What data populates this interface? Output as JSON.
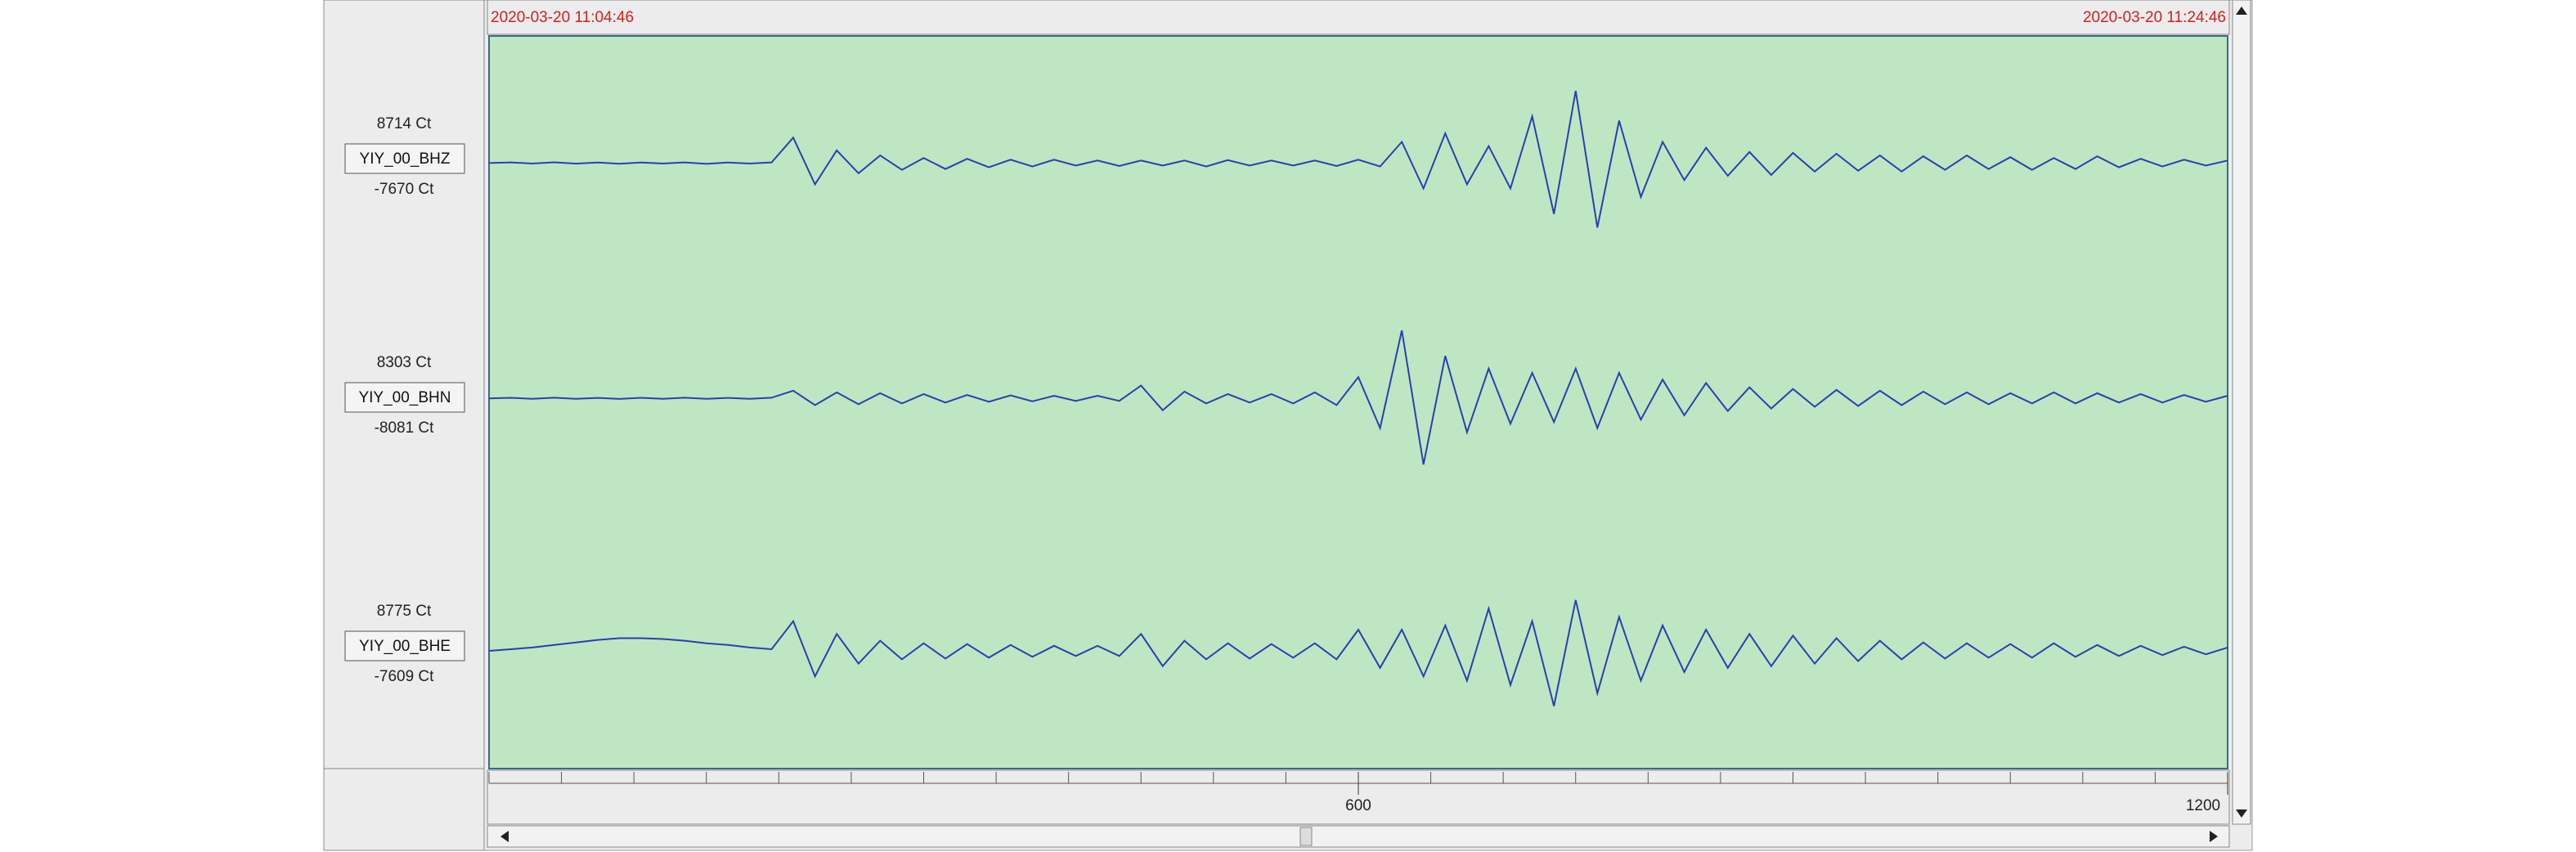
{
  "chart_data": {
    "type": "line",
    "start_time": "2020-03-20 11:04:46",
    "end_time": "2020-03-20 11:24:46",
    "background": "#bfe6c3",
    "xlim": [
      0,
      1200
    ],
    "xticks": [
      600,
      1200
    ],
    "xminorticks": [
      0,
      50,
      100,
      150,
      200,
      250,
      300,
      350,
      400,
      450,
      500,
      550,
      600,
      650,
      700,
      750,
      800,
      850,
      900,
      950,
      1000,
      1050,
      1100,
      1150,
      1200
    ],
    "x": [
      0,
      15,
      30,
      45,
      60,
      75,
      90,
      105,
      120,
      135,
      150,
      165,
      180,
      195,
      210,
      225,
      240,
      255,
      270,
      285,
      300,
      315,
      330,
      345,
      360,
      375,
      390,
      405,
      420,
      435,
      450,
      465,
      480,
      495,
      510,
      525,
      540,
      555,
      570,
      585,
      600,
      615,
      630,
      645,
      660,
      675,
      690,
      705,
      720,
      735,
      750,
      765,
      780,
      795,
      810,
      825,
      840,
      855,
      870,
      885,
      900,
      915,
      930,
      945,
      960,
      975,
      990,
      1005,
      1020,
      1035,
      1050,
      1065,
      1080,
      1095,
      1110,
      1125,
      1140,
      1155,
      1170,
      1185,
      1200
    ],
    "series": [
      {
        "name": "YIY_00_BHZ",
        "color": "#2b3fb0",
        "ylim": [
          -7670,
          8714
        ],
        "yticks": [
          {
            "value": 8714,
            "label": "8714 Ct"
          },
          {
            "value": -7670,
            "label": "-7670 Ct"
          }
        ],
        "values": [
          0,
          80,
          -60,
          90,
          -70,
          60,
          -80,
          70,
          -60,
          80,
          -90,
          70,
          -60,
          80,
          3000,
          -2500,
          1500,
          -1200,
          900,
          -800,
          600,
          -700,
          500,
          -500,
          400,
          -400,
          400,
          -300,
          300,
          -350,
          300,
          -300,
          300,
          -400,
          350,
          -300,
          300,
          -300,
          300,
          -350,
          400,
          -400,
          2500,
          -3000,
          3500,
          -2500,
          2000,
          -3000,
          5500,
          -6000,
          8500,
          -7600,
          5000,
          -4000,
          2500,
          -2000,
          1800,
          -1500,
          1300,
          -1400,
          1200,
          -1000,
          1100,
          -900,
          900,
          -1000,
          800,
          -800,
          900,
          -700,
          700,
          -800,
          600,
          -700,
          800,
          -500,
          500,
          -400,
          400,
          -300,
          300
        ]
      },
      {
        "name": "YIY_00_BHN",
        "color": "#2b3fb0",
        "ylim": [
          -8081,
          8303
        ],
        "yticks": [
          {
            "value": 8303,
            "label": "8303 Ct"
          },
          {
            "value": -8081,
            "label": "-8081 Ct"
          }
        ],
        "values": [
          0,
          60,
          -50,
          70,
          -60,
          50,
          -70,
          60,
          -50,
          70,
          -60,
          50,
          -60,
          70,
          900,
          -800,
          700,
          -700,
          600,
          -600,
          500,
          -500,
          400,
          -400,
          350,
          -350,
          300,
          -300,
          300,
          -300,
          1500,
          -1400,
          800,
          -600,
          500,
          -500,
          500,
          -600,
          700,
          -800,
          2500,
          -3500,
          8000,
          -7800,
          5000,
          -4000,
          3500,
          -3000,
          3000,
          -2800,
          3500,
          -3500,
          3000,
          -2500,
          2200,
          -2000,
          1800,
          -1500,
          1300,
          -1200,
          1100,
          -1000,
          1000,
          -900,
          900,
          -800,
          800,
          -700,
          700,
          -700,
          600,
          -600,
          700,
          -600,
          600,
          -500,
          500,
          -500,
          400,
          -400,
          300
        ]
      },
      {
        "name": "YIY_00_BHE",
        "color": "#2b3fb0",
        "ylim": [
          -7609,
          8775
        ],
        "yticks": [
          {
            "value": 8775,
            "label": "8775 Ct"
          },
          {
            "value": -7609,
            "label": "-7609 Ct"
          }
        ],
        "values": [
          0,
          200,
          400,
          700,
          1000,
          1300,
          1500,
          1500,
          1400,
          1200,
          900,
          700,
          400,
          200,
          3500,
          -3000,
          2000,
          -1500,
          1200,
          -1000,
          900,
          -900,
          800,
          -800,
          700,
          -700,
          600,
          -600,
          600,
          -600,
          2000,
          -1800,
          1200,
          -1000,
          900,
          -900,
          800,
          -800,
          900,
          -1000,
          2500,
          -2000,
          2500,
          -3000,
          3000,
          -3500,
          5000,
          -4000,
          3500,
          -6500,
          6000,
          -5000,
          4000,
          -3500,
          3000,
          -2500,
          2500,
          -2000,
          2000,
          -1800,
          1800,
          -1500,
          1500,
          -1200,
          1200,
          -1000,
          1000,
          -900,
          900,
          -800,
          800,
          -800,
          900,
          -700,
          700,
          -600,
          600,
          -500,
          500,
          -400,
          400
        ]
      }
    ]
  }
}
